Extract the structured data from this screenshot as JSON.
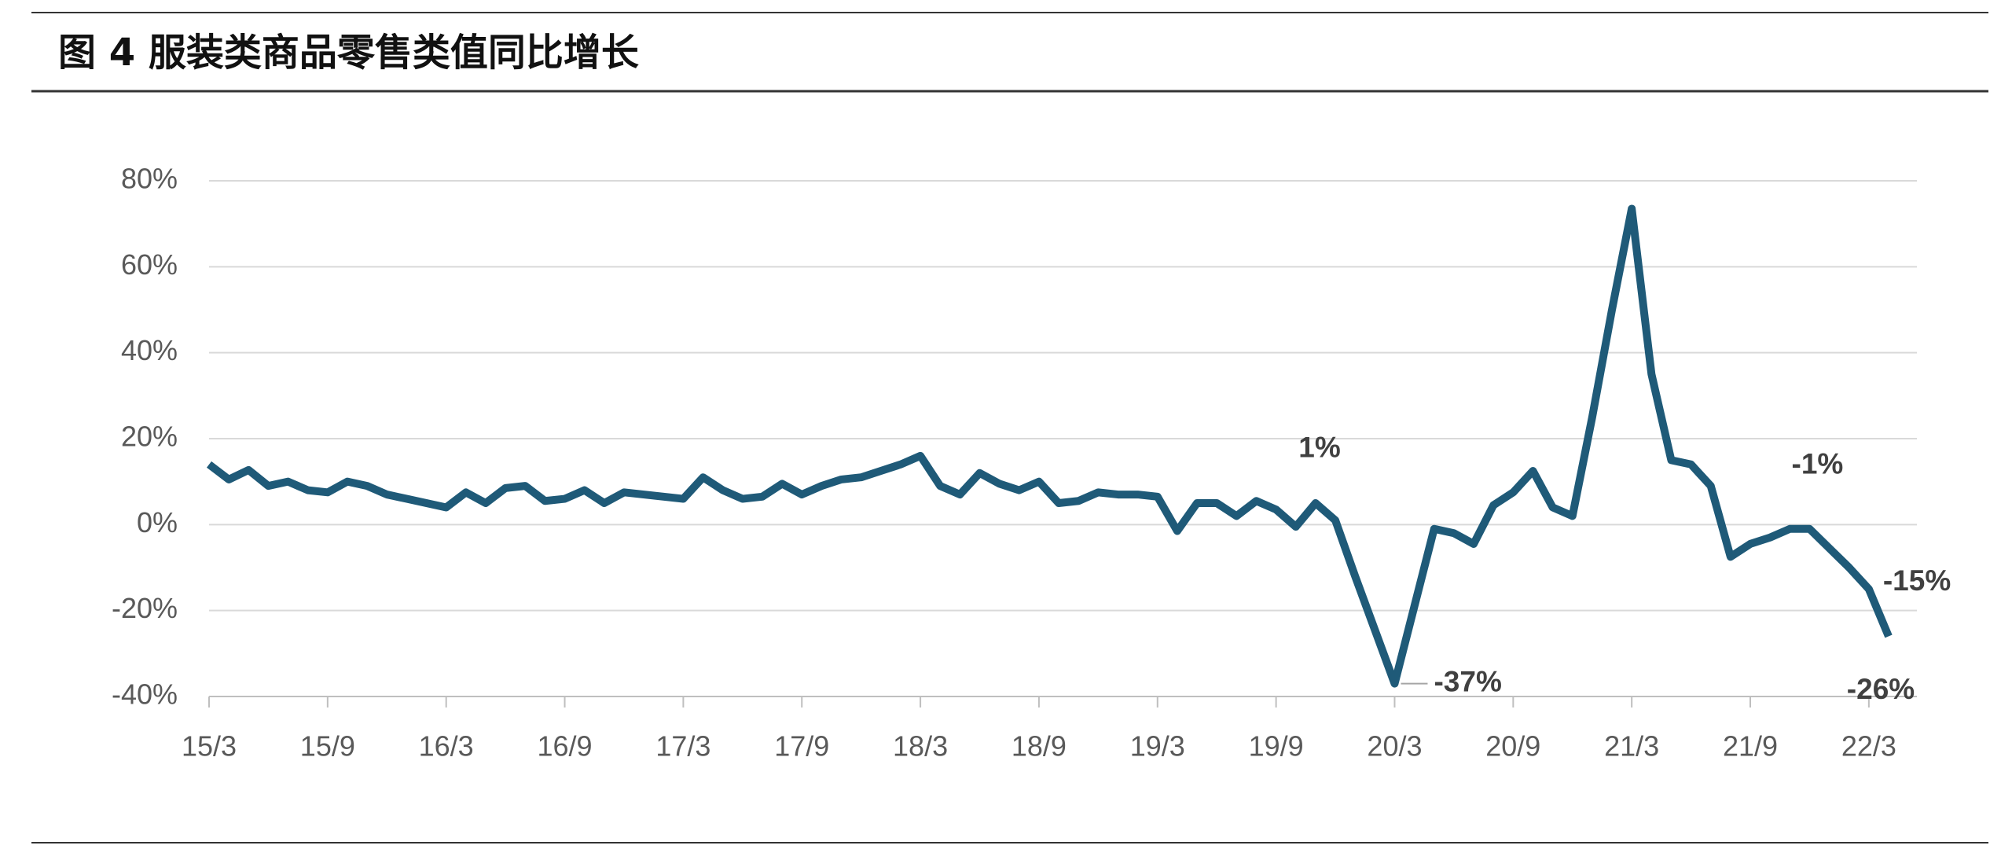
{
  "chart_data": {
    "type": "line",
    "title": "图 4 服装类商品零售类值同比增长",
    "categories": [
      "15/3",
      null,
      null,
      null,
      null,
      null,
      "15/9",
      null,
      null,
      null,
      null,
      null,
      "16/3",
      null,
      null,
      null,
      null,
      null,
      "16/9",
      null,
      null,
      null,
      null,
      null,
      "17/3",
      null,
      null,
      null,
      null,
      null,
      "17/9",
      null,
      null,
      null,
      null,
      null,
      "18/3",
      null,
      null,
      null,
      null,
      null,
      "18/9",
      null,
      null,
      null,
      null,
      null,
      "19/3",
      null,
      null,
      null,
      null,
      null,
      "19/9",
      null,
      null,
      null,
      null,
      null,
      "20/3",
      null,
      null,
      null,
      null,
      null,
      "20/9",
      null,
      null,
      null,
      null,
      null,
      "21/3",
      null,
      null,
      null,
      null,
      null,
      "21/9",
      null,
      null,
      null,
      null,
      null,
      "22/3",
      null
    ],
    "series": [
      {
        "name": "服装类商品零售类值同比增长",
        "color": "#1f5a78",
        "values": [
          14,
          10.5,
          12.7,
          9,
          10,
          8,
          7.5,
          10,
          9,
          7,
          6,
          5,
          4,
          7.5,
          5,
          8.5,
          9,
          5.5,
          6,
          8,
          5,
          7.5,
          7,
          6.5,
          6,
          11,
          8,
          6,
          6.5,
          9.5,
          7,
          9,
          10.5,
          11,
          12.5,
          14,
          16,
          9,
          7,
          12,
          9.5,
          8,
          10,
          5,
          5.5,
          7.5,
          7,
          7,
          6.5,
          -1.5,
          5,
          5,
          2,
          5.5,
          3.5,
          -0.5,
          5,
          1,
          -12,
          -24.5,
          -37,
          -19,
          -1,
          -2,
          -4.5,
          4.5,
          7.5,
          12.5,
          4,
          2,
          25,
          50,
          73.5,
          35,
          15,
          14,
          9,
          -7.5,
          -4.5,
          -3,
          -1,
          -1,
          -5.5,
          -10,
          -15,
          -26
        ],
        "value_labels": [
          null,
          null,
          null,
          null,
          null,
          null,
          null,
          null,
          null,
          null,
          null,
          null,
          null,
          null,
          null,
          null,
          null,
          null,
          null,
          null,
          null,
          null,
          null,
          null,
          null,
          null,
          null,
          null,
          null,
          null,
          null,
          null,
          null,
          null,
          null,
          null,
          null,
          null,
          null,
          null,
          null,
          null,
          null,
          null,
          null,
          null,
          null,
          null,
          null,
          null,
          null,
          null,
          null,
          null,
          null,
          null,
          null,
          "1%",
          null,
          null,
          "-37%",
          null,
          null,
          null,
          null,
          null,
          null,
          null,
          null,
          null,
          null,
          null,
          null,
          null,
          null,
          null,
          null,
          null,
          null,
          null,
          null,
          "-1%",
          null,
          null,
          "-15%",
          "-26%"
        ]
      }
    ],
    "ylim": [
      -40,
      80
    ],
    "yticks": [
      {
        "value": -40,
        "label": "-40%"
      },
      {
        "value": -20,
        "label": "-20%"
      },
      {
        "value": 0,
        "label": "0%"
      },
      {
        "value": 20,
        "label": "20%"
      },
      {
        "value": 40,
        "label": "40%"
      },
      {
        "value": 60,
        "label": "60%"
      },
      {
        "value": 80,
        "label": "80%"
      }
    ],
    "grid": true
  }
}
